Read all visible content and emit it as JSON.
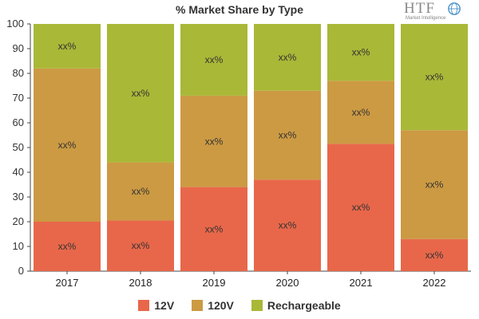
{
  "title": "% Market Share by Type",
  "logo": {
    "main": "HTF",
    "sub": "Market Intelligence"
  },
  "chart_data": {
    "type": "bar",
    "stacked": true,
    "categories": [
      "2017",
      "2018",
      "2019",
      "2020",
      "2021",
      "2022"
    ],
    "series": [
      {
        "name": "12V",
        "color": "#e8674a",
        "values": [
          20,
          20.5,
          34,
          37,
          51.5,
          13
        ],
        "labels": [
          "xx%",
          "xx%",
          "xx%",
          "xx%",
          "xx%",
          "xx%"
        ]
      },
      {
        "name": "120V",
        "color": "#cc9a43",
        "values": [
          62,
          23.5,
          37,
          36,
          25.5,
          44
        ],
        "labels": [
          "xx%",
          "xx%",
          "xx%",
          "xx%",
          "xx%",
          "xx%"
        ]
      },
      {
        "name": "Rechargeable",
        "color": "#a9b837",
        "values": [
          18,
          56,
          29,
          27,
          23,
          43
        ],
        "labels": [
          "xx%",
          "xx%",
          "xx%",
          "xx%",
          "xx%",
          "xx%"
        ]
      }
    ],
    "ylim": [
      0,
      100
    ],
    "yticks": [
      0,
      10,
      20,
      30,
      40,
      50,
      60,
      70,
      80,
      90,
      100
    ],
    "grid": false,
    "legend": "bottom"
  }
}
